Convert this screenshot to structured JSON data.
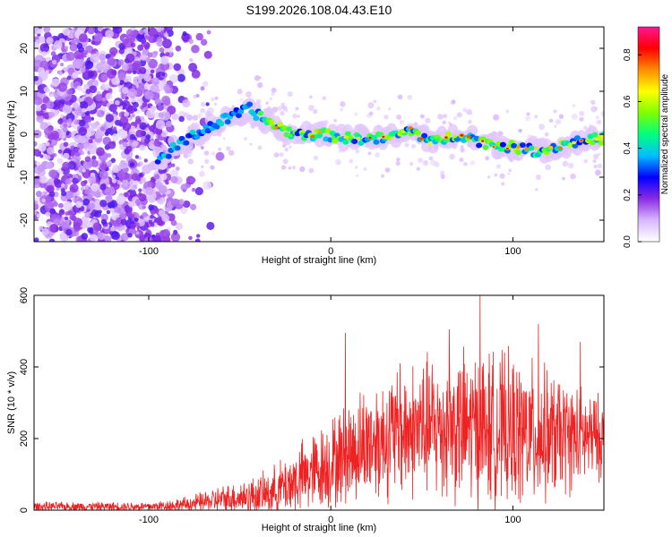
{
  "title": "S199.2026.108.04.43.E10",
  "chart_data": [
    {
      "type": "heatmap",
      "xlabel": "Height of straight line (km)",
      "ylabel": "Frequency (Hz)",
      "xlim": [
        -163,
        150
      ],
      "ylim": [
        -25,
        25
      ],
      "xticks": [
        -100,
        0,
        100
      ],
      "yticks": [
        -20,
        -10,
        0,
        10,
        20
      ],
      "ridge_path": [
        {
          "x": -95,
          "y": -6
        },
        {
          "x": -85,
          "y": -3
        },
        {
          "x": -75,
          "y": 0
        },
        {
          "x": -60,
          "y": 3
        },
        {
          "x": -45,
          "y": 6
        },
        {
          "x": -35,
          "y": 3
        },
        {
          "x": -20,
          "y": 0
        },
        {
          "x": -5,
          "y": 0
        },
        {
          "x": 10,
          "y": -1
        },
        {
          "x": 30,
          "y": -1
        },
        {
          "x": 45,
          "y": 1
        },
        {
          "x": 55,
          "y": -2
        },
        {
          "x": 70,
          "y": 0
        },
        {
          "x": 85,
          "y": -2
        },
        {
          "x": 100,
          "y": -3
        },
        {
          "x": 115,
          "y": -4
        },
        {
          "x": 130,
          "y": -2
        },
        {
          "x": 148,
          "y": -1
        }
      ],
      "colorbar": {
        "label": "Normalized spectral amplitude",
        "ticks": [
          0.0,
          0.2,
          0.4,
          0.6,
          0.8
        ],
        "range": [
          0,
          0.92
        ],
        "colors": [
          "#ffffff",
          "#d9b8ff",
          "#8a2be2",
          "#0000ff",
          "#00bfff",
          "#00ff7f",
          "#7fff00",
          "#ffff00",
          "#ff8c00",
          "#ff0000",
          "#ff1493"
        ]
      }
    },
    {
      "type": "line",
      "xlabel": "Height of straight line (km)",
      "ylabel": "SNR (10 * v/v)",
      "xlim": [
        -163,
        150
      ],
      "ylim": [
        0,
        600
      ],
      "xticks": [
        -100,
        0,
        100
      ],
      "yticks": [
        0,
        200,
        400,
        600
      ],
      "series_color": "#ee2222",
      "envelope": [
        {
          "x": -163,
          "base": 10,
          "amp": 15
        },
        {
          "x": -100,
          "base": 10,
          "amp": 15
        },
        {
          "x": -80,
          "base": 15,
          "amp": 25
        },
        {
          "x": -60,
          "base": 30,
          "amp": 45
        },
        {
          "x": -35,
          "base": 45,
          "amp": 70
        },
        {
          "x": -20,
          "base": 80,
          "amp": 110
        },
        {
          "x": 0,
          "base": 130,
          "amp": 150
        },
        {
          "x": 20,
          "base": 190,
          "amp": 190
        },
        {
          "x": 50,
          "base": 230,
          "amp": 230
        },
        {
          "x": 80,
          "base": 230,
          "amp": 260
        },
        {
          "x": 110,
          "base": 210,
          "amp": 240
        },
        {
          "x": 150,
          "base": 200,
          "amp": 130
        }
      ],
      "peaks": [
        {
          "x": 8,
          "y": 495
        },
        {
          "x": 65,
          "y": 505
        },
        {
          "x": 82,
          "y": 600
        },
        {
          "x": 114,
          "y": 520
        },
        {
          "x": 137,
          "y": 470
        },
        {
          "x": 38,
          "y": 410
        }
      ]
    }
  ]
}
